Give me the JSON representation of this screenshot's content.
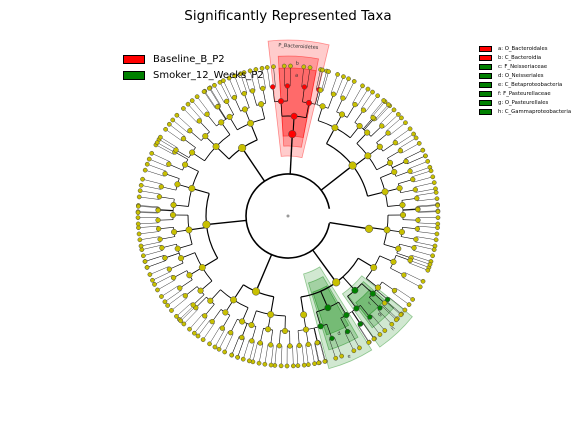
{
  "chart_data": {
    "type": "cladogram",
    "title": "Significantly Represented Taxa",
    "groups": [
      {
        "name": "Baseline_B_P2",
        "color": "#ff0000"
      },
      {
        "name": "Smoker_12_Weeks_P2",
        "color": "#008000"
      }
    ],
    "biomarkers": [
      {
        "key": "a",
        "label": "a: O_Bacteroidales",
        "group": "Baseline_B_P2",
        "color": "#ff0000"
      },
      {
        "key": "b",
        "label": "b: C_Bacteroidia",
        "group": "Baseline_B_P2",
        "color": "#ff0000"
      },
      {
        "key": "c",
        "label": "c: F_Neisseriaceae",
        "group": "Smoker_12_Weeks_P2",
        "color": "#008000"
      },
      {
        "key": "d",
        "label": "d: O_Neisseriales",
        "group": "Smoker_12_Weeks_P2",
        "color": "#008000"
      },
      {
        "key": "e",
        "label": "e: C_Betaproteobacteria",
        "group": "Smoker_12_Weeks_P2",
        "color": "#008000"
      },
      {
        "key": "f",
        "label": "f: F_Pasteurellaceae",
        "group": "Smoker_12_Weeks_P2",
        "color": "#008000"
      },
      {
        "key": "g",
        "label": "g: O_Pasteurellales",
        "group": "Smoker_12_Weeks_P2",
        "color": "#008000"
      },
      {
        "key": "h",
        "label": "h: C_Gammaproteobacteria",
        "group": "Smoker_12_Weeks_P2",
        "color": "#008000"
      }
    ],
    "sector_labels": [
      "P_Bacteroidetes",
      "b",
      "a",
      "c",
      "d",
      "e",
      "f",
      "g",
      "h"
    ],
    "node_color": "#c8c000"
  }
}
